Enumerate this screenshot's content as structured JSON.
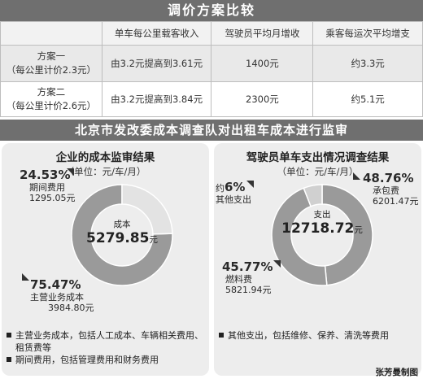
{
  "title": "调价方案比较",
  "table": {
    "headers": [
      "",
      "单车每公里载客收入",
      "驾驶员平均月增收",
      "乘客每运次平均增支"
    ],
    "rows": [
      {
        "name": "方案一",
        "sub": "（每公里计价2.3元）",
        "revenue": "由3.2元提高到3.61元",
        "driver": "1400元",
        "passenger": "约3.3元"
      },
      {
        "name": "方案二",
        "sub": "（每公里计价2.6元）",
        "revenue": "由3.2元提高到3.84元",
        "driver": "2300元",
        "passenger": "约5.1元"
      }
    ]
  },
  "section_title": "北京市发改委成本调查队对出租车成本进行监审",
  "left_panel": {
    "title": "企业的成本监审结果",
    "unit": "（单位：元/车/月）",
    "center_label": "成本",
    "center_value": "5279.85",
    "center_unit": "元",
    "callouts": [
      {
        "pct": "24.53%",
        "label": "期间费用",
        "amount": "1295.05元"
      },
      {
        "pct": "75.47%",
        "label": "主营业务成本",
        "amount": "3984.80元"
      }
    ],
    "notes": [
      "主营业务成本，包括人工成本、车辆相关费用、租赁费等",
      "期间费用，包括管理费用和财务费用"
    ]
  },
  "right_panel": {
    "title": "驾驶员单车支出情况调查结果",
    "unit": "（单位：元/车/月）",
    "center_label": "支出",
    "center_value": "12718.72",
    "center_unit": "元",
    "callouts": [
      {
        "prefix": "约",
        "pct": "6%",
        "label": "其他支出"
      },
      {
        "pct": "48.76%",
        "label": "承包费",
        "amount": "6201.47元"
      },
      {
        "pct": "45.77%",
        "label": "燃料费",
        "amount": "5821.94元"
      }
    ],
    "notes": [
      "其他支出，包括维修、保养、清洗等费用"
    ]
  },
  "credit": "张芳曼制图",
  "chart_data": [
    {
      "type": "pie",
      "categories": [
        "主营业务成本",
        "期间费用"
      ],
      "values": [
        75.47,
        24.53
      ],
      "title": "企业的成本监审结果"
    },
    {
      "type": "pie",
      "categories": [
        "承包费",
        "燃料费",
        "其他支出"
      ],
      "values": [
        48.76,
        45.77,
        6
      ],
      "title": "驾驶员单车支出情况调查结果"
    }
  ],
  "colors": {
    "bar": "#6f6f6f",
    "dark_seg": "#9a9a9a",
    "light_seg": "#e3e3e3",
    "mid_seg": "#d0d0d0",
    "panel": "#ededed"
  }
}
